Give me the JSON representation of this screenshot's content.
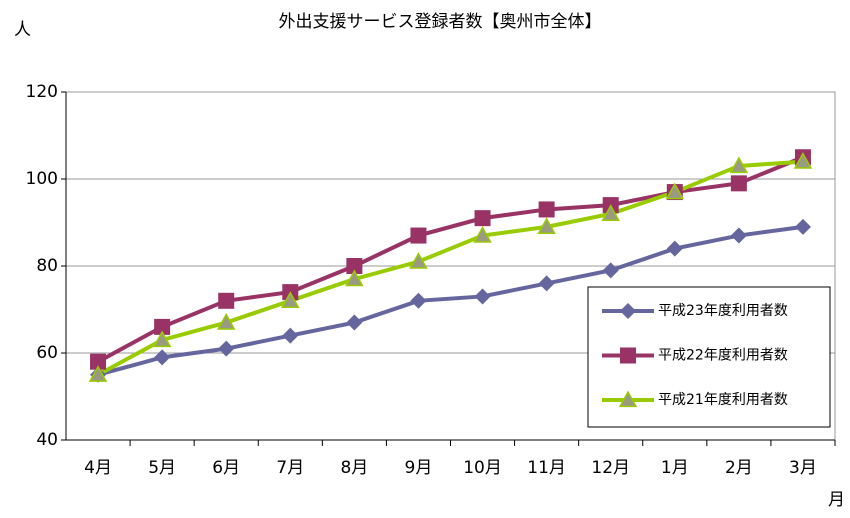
{
  "chart_data": {
    "type": "line",
    "title": "外出支援サービス登録者数【奥州市全体】",
    "y_label": "人",
    "x_label": "月",
    "categories": [
      "4月",
      "5月",
      "6月",
      "7月",
      "8月",
      "9月",
      "10月",
      "11月",
      "12月",
      "1月",
      "2月",
      "3月"
    ],
    "series": [
      {
        "name": "平成23年度利用者数",
        "color": "#66669f",
        "marker": "diamond",
        "marker_color": "#66669f",
        "values": [
          55,
          59,
          61,
          64,
          67,
          72,
          73,
          76,
          79,
          84,
          87,
          89
        ]
      },
      {
        "name": "平成22年度利用者数",
        "color": "#993366",
        "marker": "square",
        "marker_color": "#993366",
        "values": [
          58,
          66,
          72,
          74,
          80,
          87,
          91,
          93,
          94,
          97,
          99,
          105
        ]
      },
      {
        "name": "平成21年度利用者数",
        "color": "#99cc00",
        "marker": "triangle",
        "marker_color": "#9a9a80",
        "values": [
          55,
          63,
          67,
          72,
          77,
          81,
          87,
          89,
          92,
          97,
          103,
          104
        ]
      }
    ],
    "ylim": [
      40,
      120
    ],
    "yticks": [
      40,
      60,
      80,
      100,
      120
    ],
    "grid": true,
    "legend": "lower right"
  }
}
